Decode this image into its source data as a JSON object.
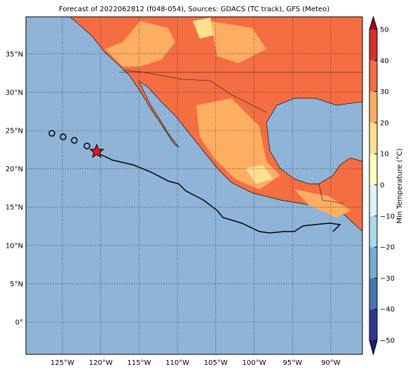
{
  "title": "Forecast of 2022062812 (f048-054), Sources: GDACS (TC track), GFS (Meteo)",
  "lon_ticks": [
    {
      "value": -125,
      "label": "125°W"
    },
    {
      "value": -120,
      "label": "120°W"
    },
    {
      "value": -115,
      "label": "115°W"
    },
    {
      "value": -110,
      "label": "110°W"
    },
    {
      "value": -105,
      "label": "105°W"
    },
    {
      "value": -100,
      "label": "100°W"
    },
    {
      "value": -95,
      "label": "95°W"
    },
    {
      "value": -90,
      "label": "90°W"
    }
  ],
  "lat_ticks": [
    {
      "value": 0,
      "label": "0°"
    },
    {
      "value": 5,
      "label": "5°N"
    },
    {
      "value": 10,
      "label": "10°N"
    },
    {
      "value": 15,
      "label": "15°N"
    },
    {
      "value": 20,
      "label": "20°N"
    },
    {
      "value": 25,
      "label": "25°N"
    },
    {
      "value": 30,
      "label": "30°N"
    },
    {
      "value": 35,
      "label": "35°N"
    }
  ],
  "colorbar": {
    "label": "Min Temperature (°C)",
    "ticks": [
      {
        "value": -50,
        "label": "−50"
      },
      {
        "value": -40,
        "label": "−40"
      },
      {
        "value": -30,
        "label": "−30"
      },
      {
        "value": -20,
        "label": "−20"
      },
      {
        "value": -10,
        "label": "−10"
      },
      0,
      10,
      20,
      30,
      40,
      50
    ],
    "colors": [
      "#313695",
      "#4575b4",
      "#74add1",
      "#abd9e9",
      "#e0f3f8",
      "#ffffbf",
      "#fee090",
      "#fdae61",
      "#f46d43",
      "#d73027"
    ],
    "extend_colors": [
      "#1f1f6e",
      "#a50026"
    ]
  }
}
